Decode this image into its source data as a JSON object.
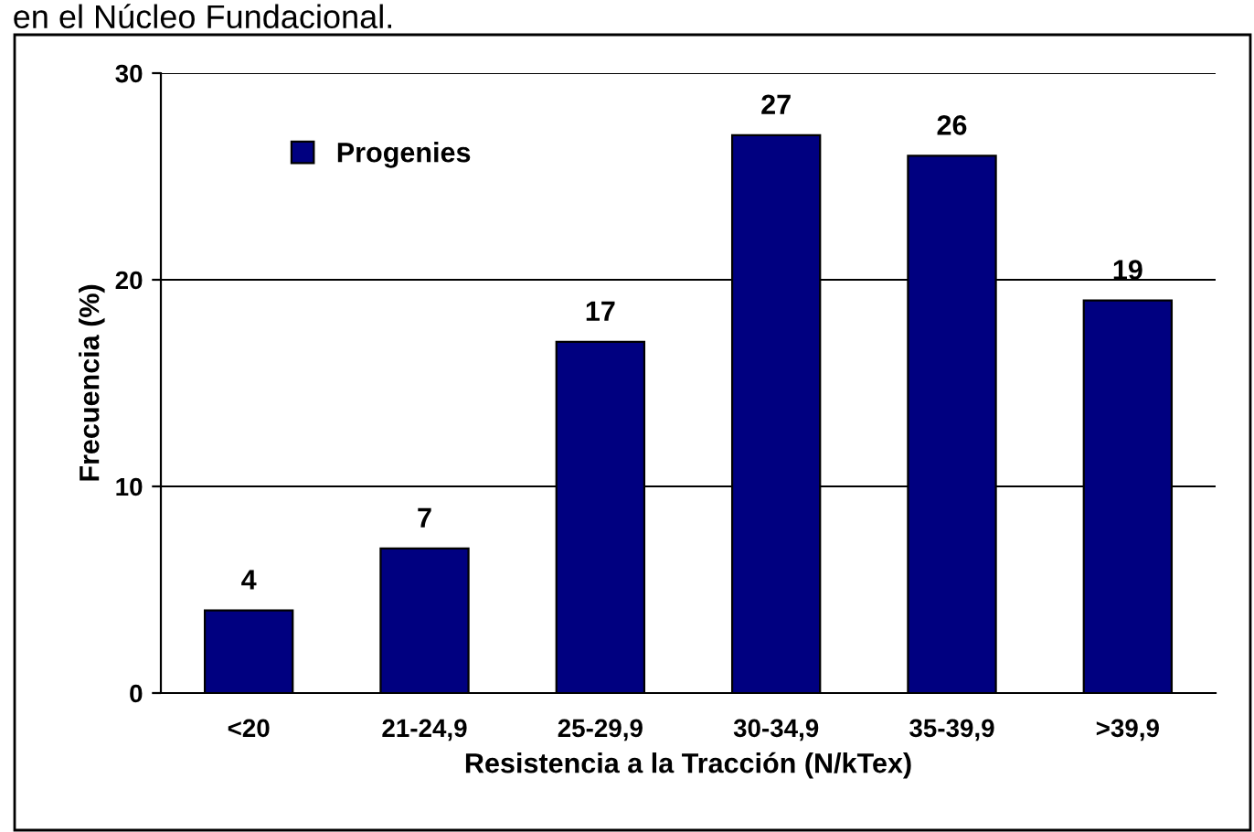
{
  "chart_data": {
    "type": "bar",
    "categories": [
      "<20",
      "21-24,9",
      "25-29,9",
      "30-34,9",
      "35-39,9",
      ">39,9"
    ],
    "series": [
      {
        "name": "Progenies",
        "color": "#000080",
        "values": [
          4,
          7,
          17,
          27,
          26,
          19
        ]
      }
    ],
    "xlabel": "Resistencia a la Tracción (N/kTex)",
    "ylabel": "Frecuencia (%)",
    "ylim": [
      0,
      30
    ],
    "yticks": [
      0,
      10,
      20,
      30
    ],
    "grid": "y",
    "legend": "top left",
    "data_labels": true,
    "annotations": [
      "en el Núcleo Fundacional."
    ]
  }
}
